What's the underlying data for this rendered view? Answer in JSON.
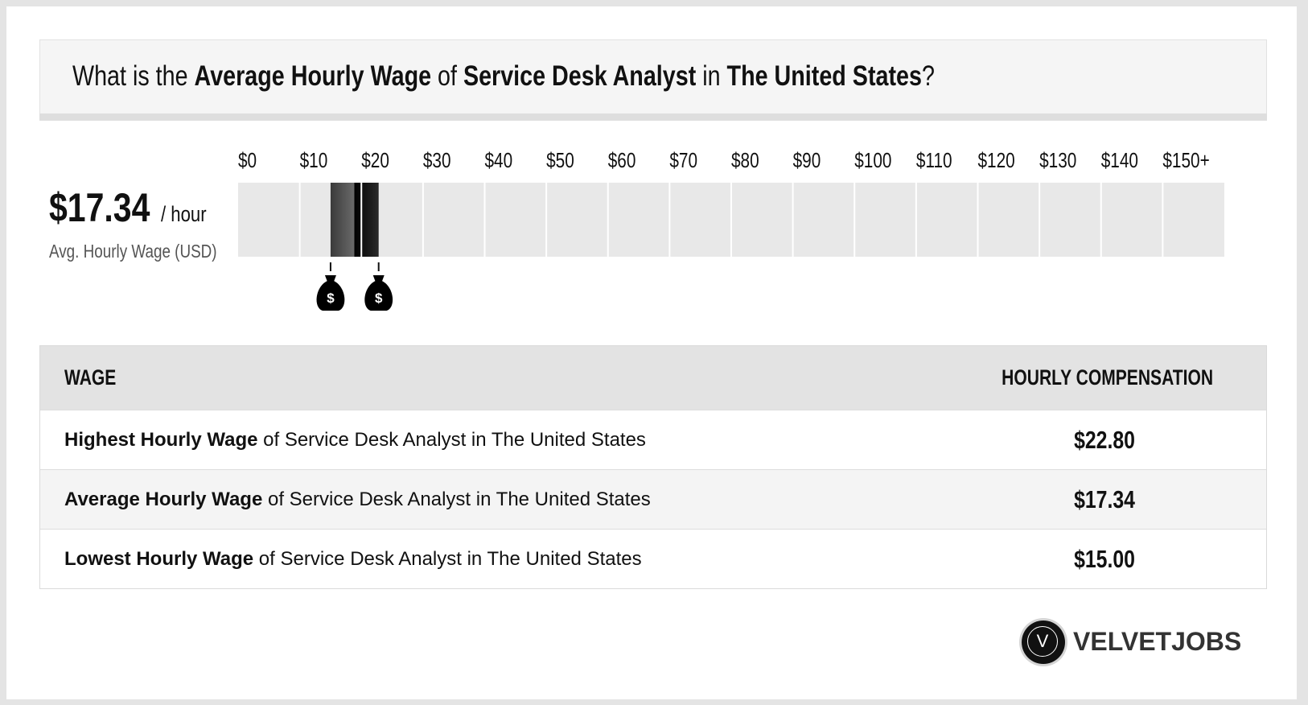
{
  "header": {
    "q_prefix": "What is the ",
    "metric": "Average Hourly Wage",
    "of": " of ",
    "job": "Service Desk Analyst",
    "in": " in ",
    "location": "The United States",
    "q_suffix": "?"
  },
  "summary": {
    "value": "$17.34",
    "unit": "/ hour",
    "label": "Avg. Hourly Wage (USD)"
  },
  "chart_data": {
    "type": "bar",
    "title": "",
    "xlabel": "",
    "ylabel": "",
    "tick_labels": [
      "$0",
      "$10",
      "$20",
      "$30",
      "$40",
      "$50",
      "$60",
      "$70",
      "$80",
      "$90",
      "$100",
      "$110",
      "$120",
      "$130",
      "$140",
      "$150+"
    ],
    "xlim": [
      0,
      150
    ],
    "bins_width": 10,
    "range_low": 15.0,
    "average": 17.34,
    "range_high": 22.8,
    "markers": [
      {
        "value": 15.0,
        "icon": "money-bag-icon",
        "symbol": "$"
      },
      {
        "value": 22.8,
        "icon": "money-bag-icon",
        "symbol": "$"
      }
    ],
    "colors": {
      "background": "#e8e8e8",
      "divider": "#ffffff",
      "low_segment": "#555555",
      "high_segment": "#111111"
    }
  },
  "table": {
    "col_wage": "WAGE",
    "col_comp": "HOURLY COMPENSATION",
    "rows": [
      {
        "bold": "Highest Hourly Wage",
        "rest": " of Service Desk Analyst in The United States",
        "value": "$22.80"
      },
      {
        "bold": "Average Hourly Wage",
        "rest": " of Service Desk Analyst in The United States",
        "value": "$17.34"
      },
      {
        "bold": "Lowest Hourly Wage",
        "rest": " of Service Desk Analyst in The United States",
        "value": "$15.00"
      }
    ]
  },
  "logo": {
    "letter": "V",
    "text": "VELVETJOBS"
  }
}
